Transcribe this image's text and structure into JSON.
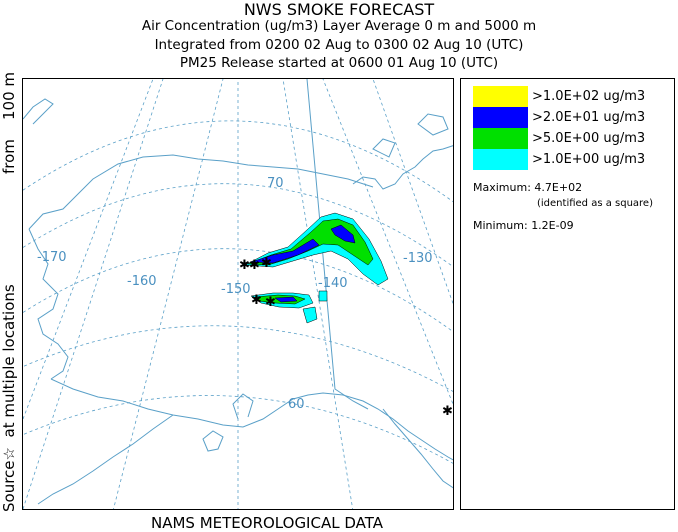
{
  "header": {
    "title": "NWS SMOKE FORECAST",
    "line2": "Air Concentration (ug/m3) Layer Average    0 m and  5000 m",
    "line3": "Integrated from 0200 02 Aug to 0300 02 Aug 10 (UTC)",
    "line4": "PM25 Release started at 0600 01 Aug 10 (UTC)"
  },
  "side_label": {
    "part1": "Source",
    "star": "☆",
    "part2": "at multiple locations",
    "part3": "from",
    "part4": "100 m"
  },
  "map": {
    "lon_labels": [
      "-170",
      "-160",
      "-150",
      "-140",
      "-130"
    ],
    "lat_labels": [
      "70",
      "60"
    ],
    "colors": {
      "land": "#5aa0c8",
      "grid": "#5aa0c8",
      "lat_label": "#4a90c0"
    }
  },
  "legend": {
    "items": [
      {
        "label": ">1.0E+02 ug/m3",
        "color": "#ffff00"
      },
      {
        "label": ">2.0E+01 ug/m3",
        "color": "#0000ff"
      },
      {
        "label": ">5.0E+00 ug/m3",
        "color": "#00e000"
      },
      {
        "label": ">1.0E+00 ug/m3",
        "color": "#00ffff"
      }
    ],
    "maximum_label": "Maximum:",
    "maximum_value": "4.7E+02",
    "maximum_note": "(identified as a square)",
    "minimum_label": "Minimum:",
    "minimum_value": "1.2E-09"
  },
  "footer": "NAMS METEOROLOGICAL DATA"
}
